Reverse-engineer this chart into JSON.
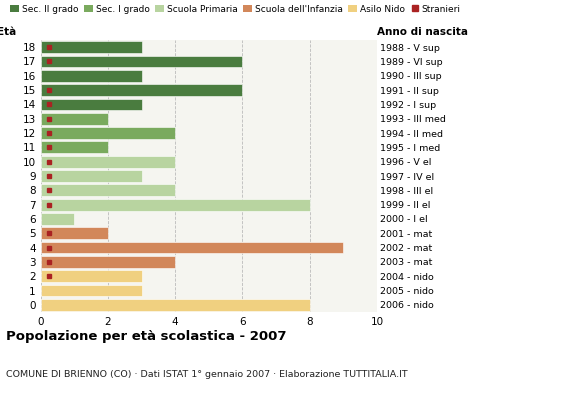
{
  "ages": [
    18,
    17,
    16,
    15,
    14,
    13,
    12,
    11,
    10,
    9,
    8,
    7,
    6,
    5,
    4,
    3,
    2,
    1,
    0
  ],
  "right_labels": [
    "1988 - V sup",
    "1989 - VI sup",
    "1990 - III sup",
    "1991 - II sup",
    "1992 - I sup",
    "1993 - III med",
    "1994 - II med",
    "1995 - I med",
    "1996 - V el",
    "1997 - IV el",
    "1998 - III el",
    "1999 - II el",
    "2000 - I el",
    "2001 - mat",
    "2002 - mat",
    "2003 - mat",
    "2004 - nido",
    "2005 - nido",
    "2006 - nido"
  ],
  "bar_values": [
    3,
    6,
    3,
    6,
    3,
    2,
    4,
    2,
    4,
    3,
    4,
    8,
    1,
    2,
    9,
    4,
    3,
    3,
    8
  ],
  "bar_colors": [
    "#4a7c3f",
    "#4a7c3f",
    "#4a7c3f",
    "#4a7c3f",
    "#4a7c3f",
    "#7aaa5e",
    "#7aaa5e",
    "#7aaa5e",
    "#b8d4a0",
    "#b8d4a0",
    "#b8d4a0",
    "#b8d4a0",
    "#b8d4a0",
    "#d2875a",
    "#d2875a",
    "#d2875a",
    "#f0d080",
    "#f0d080",
    "#f0d080"
  ],
  "stranieri_ages": [
    18,
    17,
    15,
    14,
    13,
    12,
    11,
    10,
    9,
    8,
    7,
    5,
    4,
    3,
    2
  ],
  "color_sec2": "#4a7c3f",
  "color_sec1": "#7aaa5e",
  "color_prim": "#b8d4a0",
  "color_inf": "#d2875a",
  "color_nido": "#f0d080",
  "color_str": "#aa2222",
  "title": "Popolazione per età scolastica - 2007",
  "subtitle": "COMUNE DI BRIENNO (CO) · Dati ISTAT 1° gennaio 2007 · Elaborazione TUTTITALIA.IT",
  "label_eta": "Età",
  "label_anno": "Anno di nascita",
  "xlim": [
    0,
    10
  ],
  "xticks": [
    0,
    2,
    4,
    6,
    8,
    10
  ],
  "legend_labels": [
    "Sec. II grado",
    "Sec. I grado",
    "Scuola Primaria",
    "Scuola dell'Infanzia",
    "Asilo Nido",
    "Stranieri"
  ],
  "legend_colors": [
    "#4a7c3f",
    "#7aaa5e",
    "#b8d4a0",
    "#d2875a",
    "#f0d080",
    "#aa2222"
  ],
  "bg_color": "#f5f5f0"
}
